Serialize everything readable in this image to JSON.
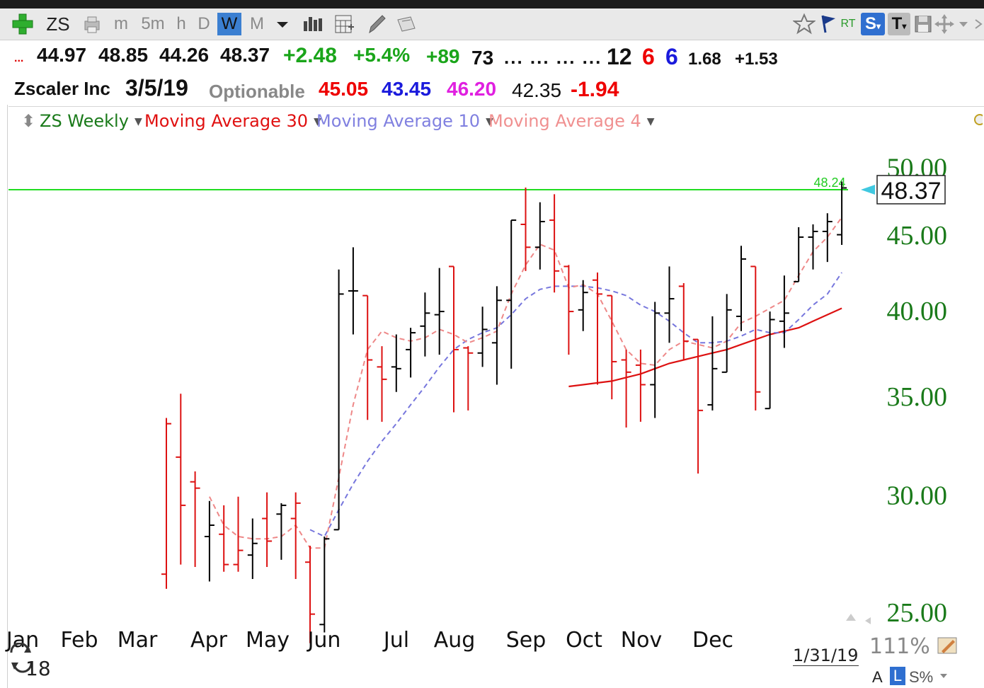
{
  "toolbar": {
    "symbol": "ZS",
    "timeframes": [
      "m",
      "5m",
      "h",
      "D",
      "W",
      "M"
    ],
    "active_timeframe": "W",
    "rt_label": "RT",
    "s_label": "S",
    "t_label": "T"
  },
  "quote": {
    "ellipsis_red": "...",
    "open": "44.97",
    "high": "48.85",
    "low": "44.26",
    "last": "48.37",
    "change": "+2.48",
    "change_pct": "+5.4%",
    "val1": "+89",
    "val2": "73",
    "dots": "... ... ... ...",
    "n1": "12",
    "n2": "6",
    "n3": "6",
    "ratio": "1.68",
    "delta": "+1.53"
  },
  "info": {
    "company": "Zscaler Inc",
    "date": "3/5/19",
    "optionable": "Optionable",
    "p_red": "45.05",
    "p_blue": "43.45",
    "p_magenta": "46.20",
    "p_black": "42.35",
    "p_change": "-1.94"
  },
  "legend": {
    "series": "ZS Weekly",
    "ma30": "Moving Average 30",
    "ma10": "Moving Average 10",
    "ma4": "Moving Average 4"
  },
  "chart_data": {
    "type": "ohlc",
    "title": "ZS Weekly",
    "y_axis_ticks": [
      25.0,
      30.0,
      35.0,
      40.0,
      45.0,
      50.0
    ],
    "y_tick_labels": [
      "25.00",
      "30.00",
      "35.00",
      "40.00",
      "45.00",
      "50.00"
    ],
    "ylim": [
      23.5,
      51.5
    ],
    "y_scale": "log",
    "x_month_labels": [
      "Jan",
      "Feb",
      "Mar",
      "Apr",
      "May",
      "Jun",
      "Jul",
      "Aug",
      "Sep",
      "Oct",
      "Nov",
      "Dec"
    ],
    "horizontal_line": {
      "value": 48.24,
      "label": "48.24",
      "color": "#22dd22"
    },
    "last_price_label": "48.37",
    "colors": {
      "up": "#000000",
      "down": "#dd1111",
      "ma30": "#dd1111",
      "ma10": "#7777dd",
      "ma4": "#ee8888",
      "axis_text": "#1a7a1a"
    },
    "bars": [
      {
        "o": 26.5,
        "h": 33.8,
        "l": 25.9,
        "c": 33.5,
        "dir": "down"
      },
      {
        "o": 31.8,
        "h": 35.1,
        "l": 26.9,
        "c": 29.5,
        "dir": "down"
      },
      {
        "o": 30.6,
        "h": 31.1,
        "l": 26.8,
        "c": 30.3,
        "dir": "down"
      },
      {
        "o": 28.1,
        "h": 29.7,
        "l": 26.2,
        "c": 28.6,
        "dir": "up"
      },
      {
        "o": 28.2,
        "h": 29.5,
        "l": 26.6,
        "c": 26.9,
        "dir": "down"
      },
      {
        "o": 26.9,
        "h": 29.9,
        "l": 26.6,
        "c": 27.5,
        "dir": "down"
      },
      {
        "o": 27.3,
        "h": 28.9,
        "l": 26.3,
        "c": 27.8,
        "dir": "up"
      },
      {
        "o": 28.9,
        "h": 30.1,
        "l": 26.8,
        "c": 27.9,
        "dir": "down"
      },
      {
        "o": 29.1,
        "h": 29.6,
        "l": 27.1,
        "c": 29.5,
        "dir": "up"
      },
      {
        "o": 28.9,
        "h": 30.1,
        "l": 26.3,
        "c": 29.6,
        "dir": "down"
      },
      {
        "o": 27.0,
        "h": 27.7,
        "l": 23.8,
        "c": 24.9,
        "dir": "down"
      },
      {
        "o": 24.5,
        "h": 28.1,
        "l": 24.2,
        "c": 28.0,
        "dir": "up"
      },
      {
        "o": 28.4,
        "h": 42.6,
        "l": 28.4,
        "c": 41.0,
        "dir": "up"
      },
      {
        "o": 41.2,
        "h": 44.1,
        "l": 38.5,
        "c": 41.2,
        "dir": "up"
      },
      {
        "o": 40.9,
        "h": 40.9,
        "l": 33.7,
        "c": 37.0,
        "dir": "down"
      },
      {
        "o": 36.6,
        "h": 37.8,
        "l": 33.6,
        "c": 35.9,
        "dir": "down"
      },
      {
        "o": 36.6,
        "h": 38.5,
        "l": 35.2,
        "c": 36.5,
        "dir": "up"
      },
      {
        "o": 37.6,
        "h": 38.9,
        "l": 36.0,
        "c": 38.6,
        "dir": "up"
      },
      {
        "o": 39.0,
        "h": 41.1,
        "l": 37.2,
        "c": 39.8,
        "dir": "up"
      },
      {
        "o": 39.7,
        "h": 42.7,
        "l": 37.3,
        "c": 39.9,
        "dir": "up"
      },
      {
        "o": 42.8,
        "h": 42.8,
        "l": 34.1,
        "c": 37.6,
        "dir": "down"
      },
      {
        "o": 37.7,
        "h": 37.8,
        "l": 34.2,
        "c": 37.4,
        "dir": "down"
      },
      {
        "o": 37.4,
        "h": 40.2,
        "l": 36.6,
        "c": 38.8,
        "dir": "up"
      },
      {
        "o": 38.0,
        "h": 41.5,
        "l": 35.6,
        "c": 40.6,
        "dir": "up"
      },
      {
        "o": 40.6,
        "h": 46.0,
        "l": 36.5,
        "c": 46.0,
        "dir": "up"
      },
      {
        "o": 45.7,
        "h": 48.4,
        "l": 42.5,
        "c": 44.1,
        "dir": "down"
      },
      {
        "o": 44.1,
        "h": 47.3,
        "l": 42.6,
        "c": 45.9,
        "dir": "up"
      },
      {
        "o": 46.0,
        "h": 47.9,
        "l": 41.1,
        "c": 42.5,
        "dir": "down"
      },
      {
        "o": 42.8,
        "h": 42.9,
        "l": 37.3,
        "c": 39.9,
        "dir": "down"
      },
      {
        "o": 40.0,
        "h": 41.9,
        "l": 38.7,
        "c": 41.1,
        "dir": "up"
      },
      {
        "o": 41.9,
        "h": 42.4,
        "l": 35.6,
        "c": 41.0,
        "dir": "down"
      },
      {
        "o": 40.9,
        "h": 40.9,
        "l": 34.8,
        "c": 36.9,
        "dir": "down"
      },
      {
        "o": 37.0,
        "h": 37.6,
        "l": 33.3,
        "c": 36.3,
        "dir": "down"
      },
      {
        "o": 36.7,
        "h": 37.6,
        "l": 33.6,
        "c": 35.6,
        "dir": "down"
      },
      {
        "o": 35.6,
        "h": 40.5,
        "l": 33.8,
        "c": 39.8,
        "dir": "up"
      },
      {
        "o": 39.8,
        "h": 42.8,
        "l": 38.0,
        "c": 40.7,
        "dir": "up"
      },
      {
        "o": 41.5,
        "h": 41.7,
        "l": 37.0,
        "c": 38.1,
        "dir": "down"
      },
      {
        "o": 38.2,
        "h": 38.2,
        "l": 31.0,
        "c": 34.2,
        "dir": "down"
      },
      {
        "o": 34.5,
        "h": 39.6,
        "l": 34.2,
        "c": 36.5,
        "dir": "up"
      },
      {
        "o": 36.3,
        "h": 41.0,
        "l": 36.3,
        "c": 40.0,
        "dir": "up"
      },
      {
        "o": 39.6,
        "h": 44.2,
        "l": 38.7,
        "c": 43.3,
        "dir": "up"
      },
      {
        "o": 42.8,
        "h": 42.8,
        "l": 34.2,
        "c": 35.2,
        "dir": "down"
      },
      {
        "o": 34.3,
        "h": 39.9,
        "l": 34.3,
        "c": 39.4,
        "dir": "up"
      },
      {
        "o": 39.3,
        "h": 42.2,
        "l": 37.7,
        "c": 39.8,
        "dir": "up"
      },
      {
        "o": 41.8,
        "h": 45.5,
        "l": 41.8,
        "c": 44.8,
        "dir": "up"
      },
      {
        "o": 44.8,
        "h": 45.7,
        "l": 42.6,
        "c": 45.2,
        "dir": "up"
      },
      {
        "o": 45.2,
        "h": 46.5,
        "l": 43.1,
        "c": 45.9,
        "dir": "up"
      },
      {
        "o": 44.97,
        "h": 48.85,
        "l": 44.26,
        "c": 48.37,
        "dir": "up"
      }
    ],
    "ma4": [
      null,
      null,
      null,
      29.9,
      28.6,
      28.1,
      28.0,
      28.0,
      28.1,
      28.6,
      27.6,
      27.6,
      30.8,
      34.5,
      37.6,
      38.7,
      38.3,
      38.1,
      38.3,
      38.8,
      38.5,
      38.0,
      38.3,
      38.7,
      41.0,
      42.9,
      44.3,
      43.9,
      41.4,
      41.6,
      41.0,
      39.3,
      37.6,
      36.8,
      36.7,
      37.6,
      38.1,
      37.9,
      37.7,
      38.1,
      39.2,
      39.6,
      40.1,
      40.6,
      42.2,
      43.8,
      44.8,
      46.2
    ],
    "ma10": [
      null,
      null,
      null,
      null,
      null,
      null,
      null,
      null,
      null,
      null,
      28.4,
      28.1,
      29.3,
      30.5,
      31.6,
      32.6,
      33.5,
      34.5,
      35.5,
      36.6,
      37.6,
      38.2,
      38.6,
      38.9,
      39.7,
      40.7,
      41.3,
      41.5,
      41.5,
      41.5,
      41.4,
      41.2,
      40.9,
      40.3,
      39.9,
      39.3,
      38.6,
      38.0,
      38.0,
      38.1,
      38.4,
      38.8,
      38.6,
      38.6,
      39.4,
      40.3,
      41.0,
      42.4
    ],
    "ma30": [
      null,
      null,
      null,
      null,
      null,
      null,
      null,
      null,
      null,
      null,
      null,
      null,
      null,
      null,
      null,
      null,
      null,
      null,
      null,
      null,
      null,
      null,
      null,
      null,
      null,
      null,
      null,
      null,
      35.5,
      35.6,
      35.7,
      35.8,
      36.0,
      36.2,
      36.5,
      36.8,
      37.0,
      37.2,
      37.4,
      37.6,
      37.9,
      38.2,
      38.5,
      38.7,
      38.9,
      39.3,
      39.7,
      40.1
    ]
  },
  "footer": {
    "year": "18",
    "date": "1/31/19",
    "zoom": "111%",
    "mode_a": "A",
    "mode_l": "L",
    "mode_s": "S%"
  }
}
